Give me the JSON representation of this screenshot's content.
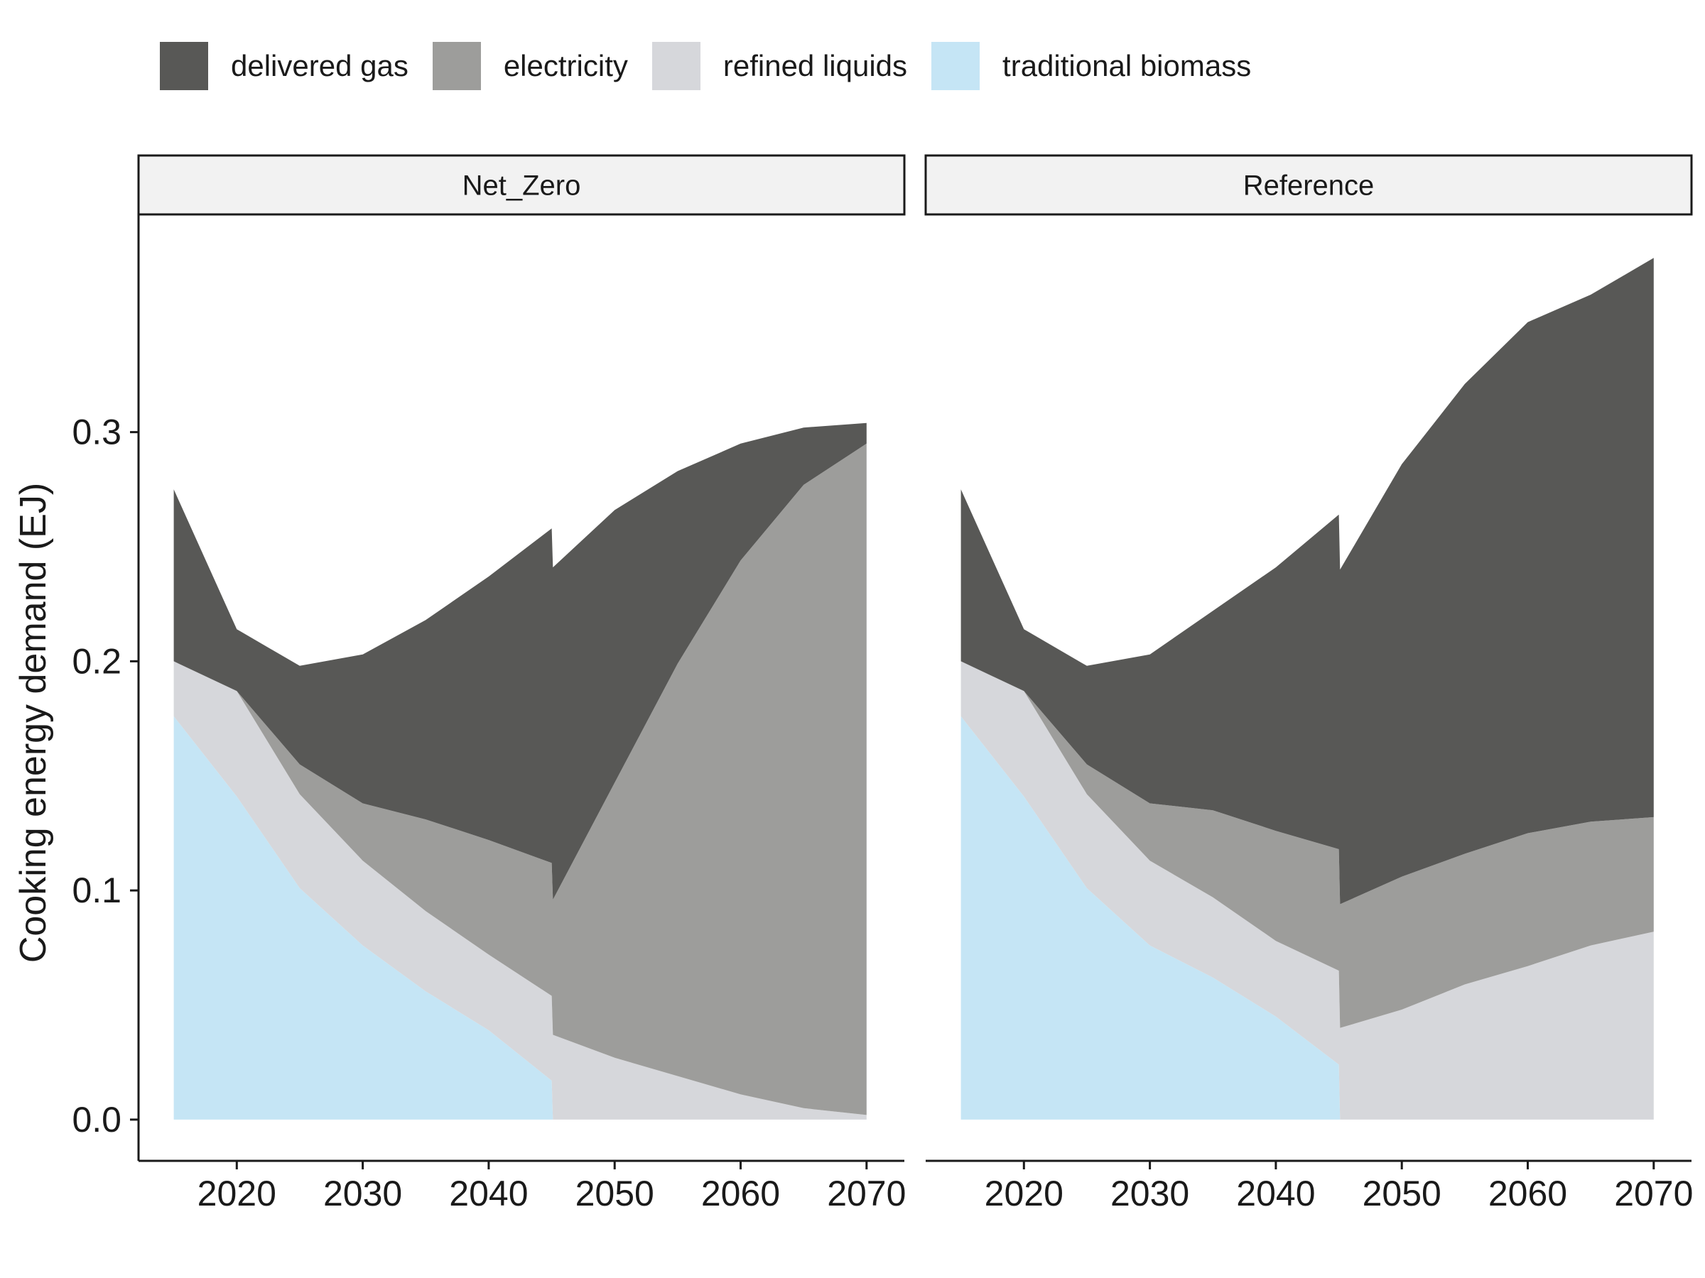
{
  "legend": {
    "items": [
      {
        "label": "delivered gas",
        "color": "#585856"
      },
      {
        "label": "electricity",
        "color": "#9d9d9b"
      },
      {
        "label": "refined liquids",
        "color": "#d6d7db"
      },
      {
        "label": "traditional biomass",
        "color": "#c5e5f5"
      }
    ]
  },
  "chart_data": {
    "type": "area",
    "stacked": true,
    "ylabel": "Cooking energy demand (EJ)",
    "xlabel": "",
    "ylim": [
      -0.018,
      0.395
    ],
    "yticks": [
      0.0,
      0.1,
      0.2,
      0.3
    ],
    "ytick_labels": [
      "0.0",
      "0.1",
      "0.2",
      "0.3"
    ],
    "xlim": [
      2012.2,
      2073.0
    ],
    "xticks": [
      2020,
      2030,
      2040,
      2050,
      2060,
      2070
    ],
    "xtick_labels": [
      "2020",
      "2030",
      "2040",
      "2050",
      "2060",
      "2070"
    ],
    "legend_position": "top",
    "series_names": [
      "traditional biomass",
      "refined liquids",
      "electricity",
      "delivered gas"
    ],
    "series_colors": [
      "#c5e5f5",
      "#d6d7db",
      "#9d9d9b",
      "#585856"
    ],
    "panels": [
      {
        "facet": "Net_Zero",
        "x": [
          2015,
          2020,
          2025,
          2030,
          2035,
          2040,
          2045,
          2045.1,
          2050,
          2055,
          2060,
          2065,
          2070
        ],
        "series": [
          {
            "name": "traditional biomass",
            "values": [
              0.176,
              0.141,
              0.101,
              0.076,
              0.056,
              0.039,
              0.017,
              0.0,
              0.0,
              0.0,
              0.0,
              0.0,
              0.0
            ]
          },
          {
            "name": "refined liquids",
            "values": [
              0.024,
              0.046,
              0.041,
              0.037,
              0.035,
              0.033,
              0.037,
              0.037,
              0.027,
              0.019,
              0.011,
              0.005,
              0.002
            ]
          },
          {
            "name": "electricity",
            "values": [
              0.0,
              0.0,
              0.013,
              0.025,
              0.04,
              0.05,
              0.058,
              0.059,
              0.12,
              0.18,
              0.233,
              0.272,
              0.293
            ]
          },
          {
            "name": "delivered gas",
            "values": [
              0.075,
              0.027,
              0.043,
              0.065,
              0.087,
              0.115,
              0.146,
              0.145,
              0.119,
              0.084,
              0.051,
              0.025,
              0.009
            ]
          }
        ]
      },
      {
        "facet": "Reference",
        "x": [
          2015,
          2020,
          2025,
          2030,
          2035,
          2040,
          2045,
          2045.1,
          2050,
          2055,
          2060,
          2065,
          2070
        ],
        "series": [
          {
            "name": "traditional biomass",
            "values": [
              0.176,
              0.141,
              0.101,
              0.076,
              0.062,
              0.045,
              0.024,
              0.0,
              0.0,
              0.0,
              0.0,
              0.0,
              0.0
            ]
          },
          {
            "name": "refined liquids",
            "values": [
              0.024,
              0.046,
              0.041,
              0.037,
              0.035,
              0.033,
              0.041,
              0.04,
              0.048,
              0.059,
              0.067,
              0.076,
              0.082
            ]
          },
          {
            "name": "electricity",
            "values": [
              0.0,
              0.0,
              0.013,
              0.025,
              0.038,
              0.048,
              0.053,
              0.054,
              0.058,
              0.057,
              0.058,
              0.054,
              0.05
            ]
          },
          {
            "name": "delivered gas",
            "values": [
              0.075,
              0.027,
              0.043,
              0.065,
              0.087,
              0.115,
              0.146,
              0.146,
              0.18,
              0.205,
              0.223,
              0.23,
              0.244
            ]
          }
        ]
      }
    ]
  }
}
